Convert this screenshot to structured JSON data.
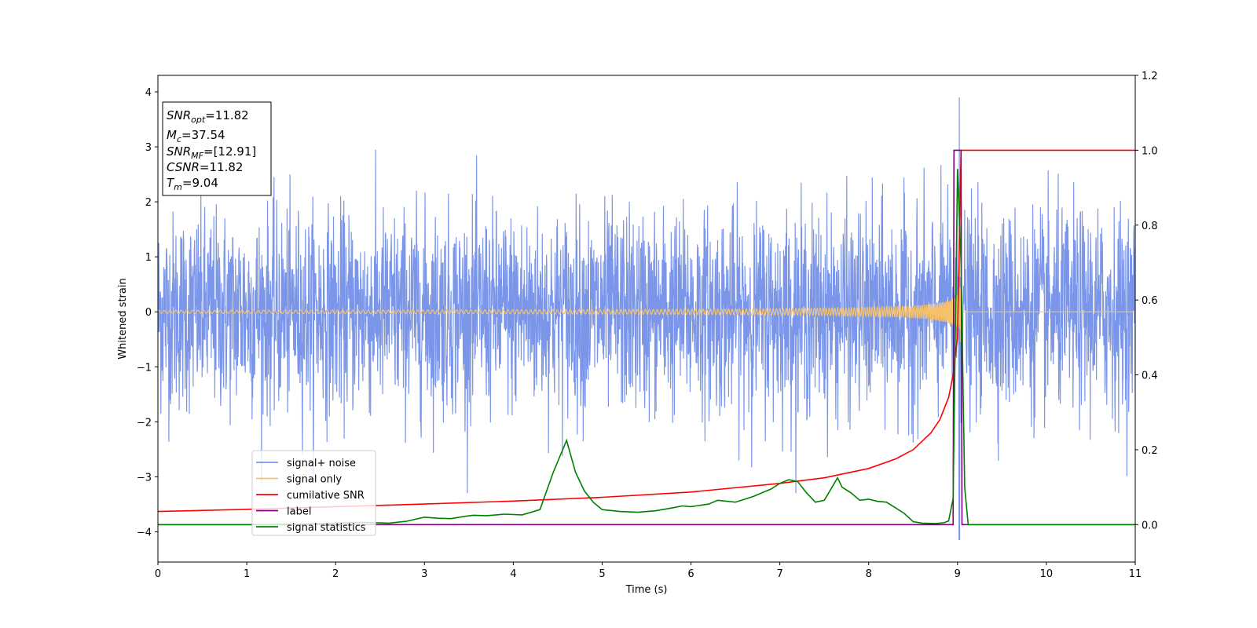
{
  "chart_data": {
    "type": "line",
    "xlabel": "Time (s)",
    "ylabel": "Whitened strain",
    "xlim": [
      0,
      11
    ],
    "ylim": [
      -4.55,
      4.3
    ],
    "y2lim": [
      -0.1,
      1.2
    ],
    "x_ticks": [
      "0",
      "1",
      "2",
      "3",
      "4",
      "5",
      "6",
      "7",
      "8",
      "9",
      "10",
      "11"
    ],
    "y_ticks": [
      "4",
      "3",
      "2",
      "1",
      "0",
      "−1",
      "−2",
      "−3",
      "−4"
    ],
    "y_tick_values": [
      4,
      3,
      2,
      1,
      0,
      -1,
      -2,
      -3,
      -4
    ],
    "y2_ticks": [
      "1.2",
      "1.0",
      "0.8",
      "0.6",
      "0.4",
      "0.2",
      "0.0"
    ],
    "y2_tick_values": [
      1.2,
      1.0,
      0.8,
      0.6,
      0.4,
      0.2,
      0.0
    ],
    "legend_position": "lower-left",
    "series": [
      {
        "name": "signal+ noise",
        "color": "#7b96e8",
        "axis": "left",
        "description": "noise band",
        "noise_sigma": 0.9,
        "peak_x": 9.02,
        "peak_max": 3.9,
        "peak_min": -4.15
      },
      {
        "name": "signal only",
        "color": "#f5c26b",
        "axis": "left",
        "chirp_end_x": 9.04,
        "max_amplitude": 0.6
      },
      {
        "name": "cumilative SNR",
        "color": "#ff0000",
        "axis": "right",
        "x": [
          0,
          1,
          2,
          3,
          4,
          5,
          6,
          7,
          7.5,
          8,
          8.3,
          8.5,
          8.7,
          8.8,
          8.9,
          8.95,
          9.0,
          9.04,
          11
        ],
        "y": [
          0.035,
          0.041,
          0.048,
          0.055,
          0.063,
          0.073,
          0.087,
          0.11,
          0.125,
          0.15,
          0.175,
          0.2,
          0.245,
          0.28,
          0.34,
          0.4,
          0.5,
          1.0,
          1.0
        ]
      },
      {
        "name": "label",
        "color": "#800080",
        "axis": "right",
        "x": [
          0,
          8.95,
          8.96,
          9.04,
          9.05,
          11
        ],
        "y": [
          0,
          0,
          1.0,
          1.0,
          0,
          0
        ]
      },
      {
        "name": "signal statistics",
        "color": "#008000",
        "axis": "right",
        "x": [
          0,
          0.5,
          1,
          1.5,
          2,
          2.3,
          2.6,
          2.8,
          3.0,
          3.15,
          3.3,
          3.45,
          3.55,
          3.7,
          3.9,
          4.1,
          4.3,
          4.45,
          4.6,
          4.7,
          4.8,
          4.9,
          5.0,
          5.2,
          5.4,
          5.6,
          5.8,
          5.9,
          6.0,
          6.2,
          6.3,
          6.5,
          6.7,
          6.9,
          7.0,
          7.1,
          7.2,
          7.3,
          7.4,
          7.5,
          7.6,
          7.65,
          7.7,
          7.8,
          7.9,
          8.0,
          8.1,
          8.2,
          8.3,
          8.4,
          8.5,
          8.6,
          8.75,
          8.85,
          8.9,
          8.95,
          9.0,
          9.04,
          9.08,
          9.12,
          11
        ],
        "y": [
          0,
          0,
          0,
          0.001,
          0.004,
          0.006,
          0.004,
          0.009,
          0.02,
          0.017,
          0.016,
          0.022,
          0.025,
          0.024,
          0.028,
          0.026,
          0.04,
          0.14,
          0.225,
          0.14,
          0.09,
          0.06,
          0.04,
          0.035,
          0.033,
          0.037,
          0.045,
          0.05,
          0.048,
          0.055,
          0.065,
          0.06,
          0.075,
          0.095,
          0.11,
          0.12,
          0.115,
          0.085,
          0.06,
          0.065,
          0.105,
          0.125,
          0.1,
          0.085,
          0.065,
          0.068,
          0.062,
          0.06,
          0.045,
          0.03,
          0.008,
          0.004,
          0.003,
          0.005,
          0.01,
          0.07,
          0.95,
          0.7,
          0.1,
          0.0,
          0.0
        ]
      }
    ]
  },
  "info_box": {
    "snr_opt_label": "SNR",
    "snr_opt_sub": "opt",
    "snr_opt_value": "=11.82",
    "mc_label": "M",
    "mc_sub": "c",
    "mc_value": "=37.54",
    "snr_mf_label": "SNR",
    "snr_mf_sub": "MF",
    "snr_mf_value": "=[12.91]",
    "csnr_label": "CSNR",
    "csnr_value": "=11.82",
    "tm_label": "T",
    "tm_sub": "m",
    "tm_value": "=9.04"
  }
}
